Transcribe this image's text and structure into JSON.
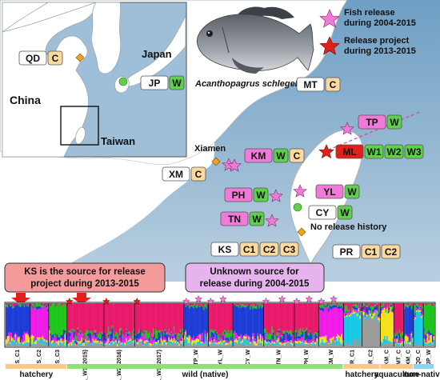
{
  "map": {
    "regions": {
      "china": "China",
      "japan": "Japan",
      "taiwan": "Taiwan"
    },
    "city": "Xiamen",
    "species": "Acanthopagrus schlegelii",
    "no_release": "No release history",
    "legend": [
      {
        "symbol": "star",
        "color": "#f07ad8",
        "text1": "Fish release",
        "text2": "during 2004-2015"
      },
      {
        "symbol": "star",
        "color": "#e0201a",
        "text1": "Release project",
        "text2": "during 2013-2015"
      }
    ],
    "inset_sites": [
      {
        "code": "QD",
        "tags": [
          {
            "label": "C",
            "color": "#fbd9a0"
          }
        ]
      },
      {
        "code": "JP",
        "tags": [
          {
            "label": "W",
            "color": "#5fd04b"
          }
        ]
      }
    ],
    "sites": [
      {
        "code": "MT",
        "tags": [
          {
            "label": "C",
            "color": "#fbd9a0"
          }
        ]
      },
      {
        "code": "TP",
        "tags": [
          {
            "label": "W",
            "color": "#5fd04b"
          }
        ]
      },
      {
        "code": "ML",
        "tags": [
          {
            "label": "W1",
            "color": "#5fd04b"
          },
          {
            "label": "W2",
            "color": "#5fd04b"
          },
          {
            "label": "W3",
            "color": "#5fd04b"
          }
        ]
      },
      {
        "code": "KM",
        "tags": [
          {
            "label": "W",
            "color": "#5fd04b"
          },
          {
            "label": "C",
            "color": "#fbd9a0"
          }
        ]
      },
      {
        "code": "XM",
        "tags": [
          {
            "label": "C",
            "color": "#fbd9a0"
          }
        ]
      },
      {
        "code": "PH",
        "tags": [
          {
            "label": "W",
            "color": "#5fd04b"
          }
        ]
      },
      {
        "code": "YL",
        "tags": [
          {
            "label": "W",
            "color": "#5fd04b"
          }
        ]
      },
      {
        "code": "CY",
        "tags": [
          {
            "label": "W",
            "color": "#5fd04b"
          }
        ]
      },
      {
        "code": "TN",
        "tags": [
          {
            "label": "W",
            "color": "#5fd04b"
          }
        ]
      },
      {
        "code": "KS",
        "tags": [
          {
            "label": "C1",
            "color": "#fbd9a0"
          },
          {
            "label": "C2",
            "color": "#fbd9a0"
          },
          {
            "label": "C3",
            "color": "#fbd9a0"
          }
        ]
      },
      {
        "code": "PR",
        "tags": [
          {
            "label": "C1",
            "color": "#fbd9a0"
          },
          {
            "label": "C2",
            "color": "#fbd9a0"
          }
        ]
      }
    ],
    "site_colors": {
      "default": "#ffffff",
      "ML": "#e0201a",
      "pink": "#f07ad8"
    }
  },
  "callouts": {
    "ks_source": [
      "KS is the source for release",
      "project during 2013-2015"
    ],
    "unknown_source": [
      "Unknown source for",
      "release during 2004-2015"
    ]
  },
  "structure_plot": {
    "populations": [
      "KS_C1",
      "KS_C2",
      "KS_C3",
      "ML_W1 (2015)",
      "ML_W2 (2016)",
      "ML_W3 (2017)",
      "TP_W",
      "YL_W",
      "CY_W",
      "TN_W",
      "PH_W",
      "KM_W",
      "PR_C1",
      "PR_C2",
      "KM_C",
      "MT_C",
      "XM_C",
      "QD_C",
      "JP_W"
    ],
    "cluster_colors": [
      "#e8186b",
      "#1dc51d",
      "#1d3dd6",
      "#f01be6",
      "#f5e11a",
      "#18c9e6",
      "#9a9a9a"
    ]
  },
  "categories": [
    {
      "label": "hatchery",
      "color": "#f8c98a"
    },
    {
      "label": "wild (native)",
      "color": "#8fe07a"
    },
    {
      "label": "hatchery",
      "color": "#f8c98a"
    },
    {
      "label": "aquaculture",
      "color": "#f8c98a"
    },
    {
      "label": "non-native",
      "color": "#8fd2f0"
    }
  ]
}
